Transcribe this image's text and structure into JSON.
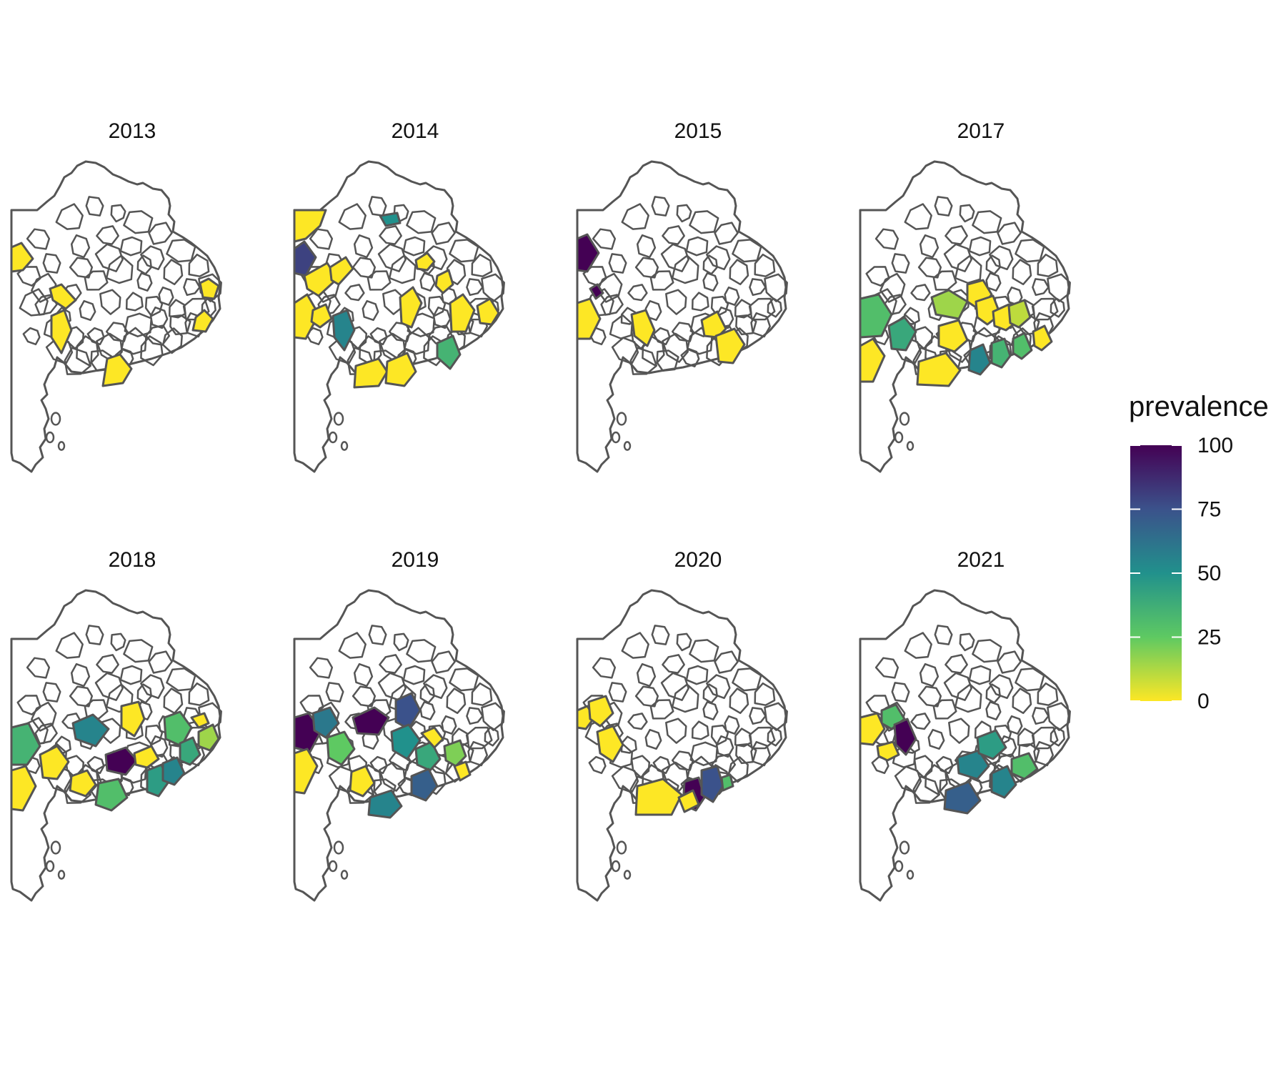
{
  "figure": {
    "type": "choropleth-small-multiples",
    "region_base": "province-partido-map",
    "outline_color": "#555555",
    "no_data_fill": "#ffffff"
  },
  "panels": [
    {
      "year": "2013",
      "districts": [
        {
          "prevalence": 0
        },
        {
          "prevalence": 0
        },
        {
          "prevalence": 0
        },
        {
          "prevalence": 0
        },
        {
          "prevalence": 0
        },
        {
          "prevalence": 0
        }
      ]
    },
    {
      "year": "2014",
      "districts": [
        {
          "prevalence": 0
        },
        {
          "prevalence": 80
        },
        {
          "prevalence": 0
        },
        {
          "prevalence": 0
        },
        {
          "prevalence": 0
        },
        {
          "prevalence": 55
        },
        {
          "prevalence": 50
        },
        {
          "prevalence": 0
        },
        {
          "prevalence": 0
        },
        {
          "prevalence": 0
        },
        {
          "prevalence": 0
        },
        {
          "prevalence": 0
        },
        {
          "prevalence": 35
        },
        {
          "prevalence": 0
        },
        {
          "prevalence": 0
        },
        {
          "prevalence": 0
        }
      ]
    },
    {
      "year": "2015",
      "districts": [
        {
          "prevalence": 100
        },
        {
          "prevalence": 100
        },
        {
          "prevalence": 0
        },
        {
          "prevalence": 0
        },
        {
          "prevalence": 0
        },
        {
          "prevalence": 0
        }
      ]
    },
    {
      "year": "2017",
      "districts": [
        {
          "prevalence": 30
        },
        {
          "prevalence": 0
        },
        {
          "prevalence": 40
        },
        {
          "prevalence": 15
        },
        {
          "prevalence": 0
        },
        {
          "prevalence": 0
        },
        {
          "prevalence": 0
        },
        {
          "prevalence": 10
        },
        {
          "prevalence": 0
        },
        {
          "prevalence": 55
        },
        {
          "prevalence": 35
        },
        {
          "prevalence": 30
        },
        {
          "prevalence": 0
        },
        {
          "prevalence": 0
        }
      ]
    },
    {
      "year": "2018",
      "districts": [
        {
          "prevalence": 35
        },
        {
          "prevalence": 0
        },
        {
          "prevalence": 0
        },
        {
          "prevalence": 55
        },
        {
          "prevalence": 0
        },
        {
          "prevalence": 100
        },
        {
          "prevalence": 0
        },
        {
          "prevalence": 30
        },
        {
          "prevalence": 0
        },
        {
          "prevalence": 30
        },
        {
          "prevalence": 45
        },
        {
          "prevalence": 55
        },
        {
          "prevalence": 40
        },
        {
          "prevalence": 15
        },
        {
          "prevalence": 0
        }
      ]
    },
    {
      "year": "2019",
      "districts": [
        {
          "prevalence": 100
        },
        {
          "prevalence": 60
        },
        {
          "prevalence": 100
        },
        {
          "prevalence": 75
        },
        {
          "prevalence": 50
        },
        {
          "prevalence": 25
        },
        {
          "prevalence": 0
        },
        {
          "prevalence": 0
        },
        {
          "prevalence": 55
        },
        {
          "prevalence": 40
        },
        {
          "prevalence": 70
        },
        {
          "prevalence": 20
        },
        {
          "prevalence": 0
        },
        {
          "prevalence": 0
        }
      ]
    },
    {
      "year": "2020",
      "districts": [
        {
          "prevalence": 0
        },
        {
          "prevalence": 0
        },
        {
          "prevalence": 0
        },
        {
          "prevalence": 0
        },
        {
          "prevalence": 100
        },
        {
          "prevalence": 75
        },
        {
          "prevalence": 30
        },
        {
          "prevalence": 0
        }
      ]
    },
    {
      "year": "2021",
      "districts": [
        {
          "prevalence": 30
        },
        {
          "prevalence": 0
        },
        {
          "prevalence": 100
        },
        {
          "prevalence": 0
        },
        {
          "prevalence": 55
        },
        {
          "prevalence": 45
        },
        {
          "prevalence": 70
        },
        {
          "prevalence": 55
        },
        {
          "prevalence": 30
        }
      ]
    }
  ],
  "legend": {
    "title": "prevalence",
    "ticks": [
      {
        "value": 100,
        "label": "100"
      },
      {
        "value": 75,
        "label": "75"
      },
      {
        "value": 50,
        "label": "50"
      },
      {
        "value": 25,
        "label": "25"
      },
      {
        "value": 0,
        "label": "0"
      }
    ],
    "scale_min": 0,
    "scale_max": 100,
    "palette": "viridis (reversed)",
    "colors": [
      "#440154",
      "#3b528b",
      "#21918c",
      "#5ec962",
      "#fde725"
    ]
  }
}
